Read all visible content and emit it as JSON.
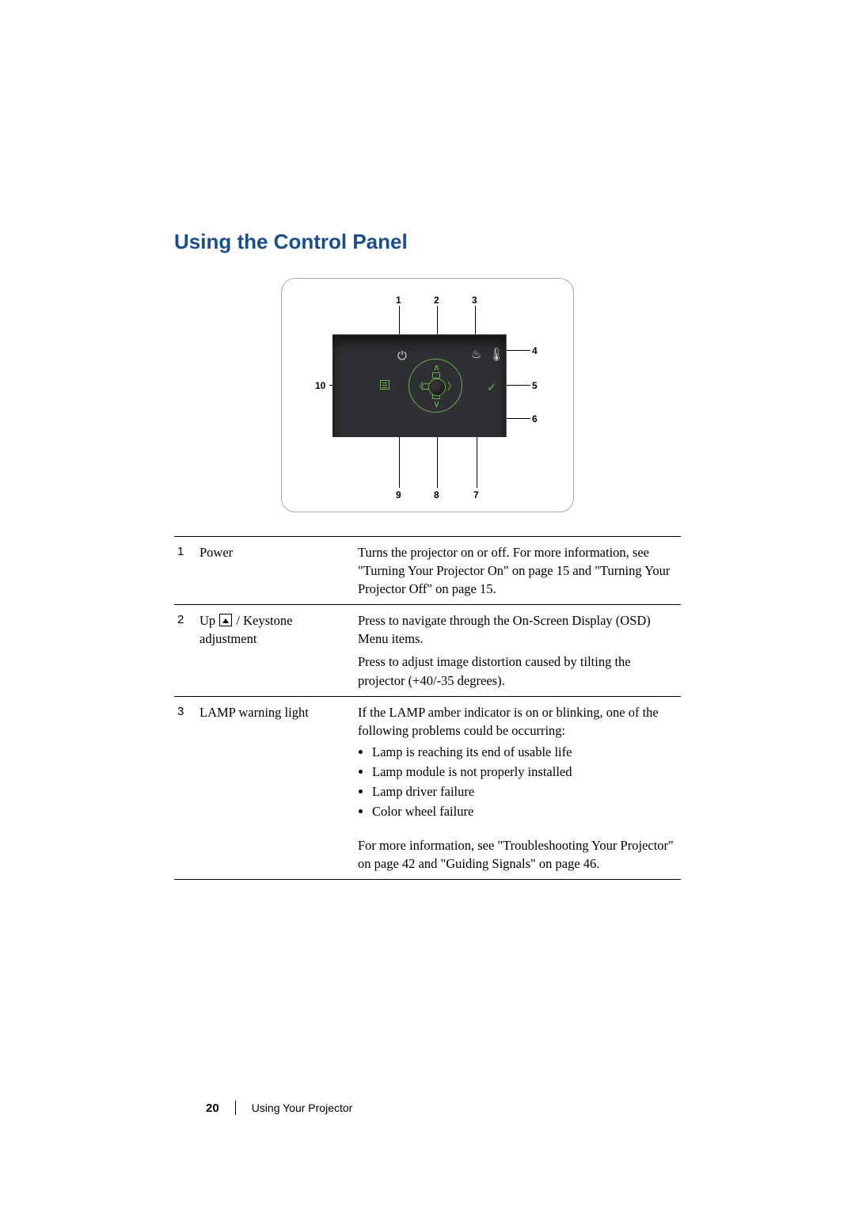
{
  "heading": "Using the Control Panel",
  "figure": {
    "callouts": [
      "1",
      "2",
      "3",
      "4",
      "5",
      "6",
      "7",
      "8",
      "9",
      "10"
    ],
    "panel_bg": "#2f3033",
    "accent_color": "#6ab04c",
    "icon_color": "#dcdcdc"
  },
  "rows": [
    {
      "num": "1",
      "label": "Power",
      "desc": "Turns the projector on or off. For more information, see \"Turning Your Projector On\" on page 15 and \"Turning Your Projector Off\" on page 15."
    },
    {
      "num": "2",
      "label_pre": "Up ",
      "label_post": " / Keystone adjustment",
      "desc": "Press to navigate through the On-Screen Display (OSD) Menu items.",
      "desc2": "Press to adjust image distortion caused by tilting the projector (+40/-35 degrees)."
    },
    {
      "num": "3",
      "label": "LAMP warning light",
      "desc": "If the LAMP amber indicator is on or blinking, one of the following problems could be occurring:",
      "bullets": [
        "Lamp is reaching its end of usable life",
        "Lamp module is not properly installed",
        "Lamp driver failure",
        "Color wheel failure"
      ],
      "desc3": "For more information, see \"Troubleshooting Your Projector\" on page 42 and \"Guiding Signals\" on page 46."
    }
  ],
  "footer": {
    "page_number": "20",
    "section": "Using Your Projector"
  },
  "colors": {
    "heading": "#1a4e8a",
    "text": "#000000",
    "rule": "#000000",
    "page_bg": "#ffffff"
  },
  "typography": {
    "heading_family": "Arial, Helvetica, sans-serif",
    "heading_size_pt": 20,
    "body_family": "Georgia, 'Times New Roman', serif",
    "body_size_pt": 12
  }
}
